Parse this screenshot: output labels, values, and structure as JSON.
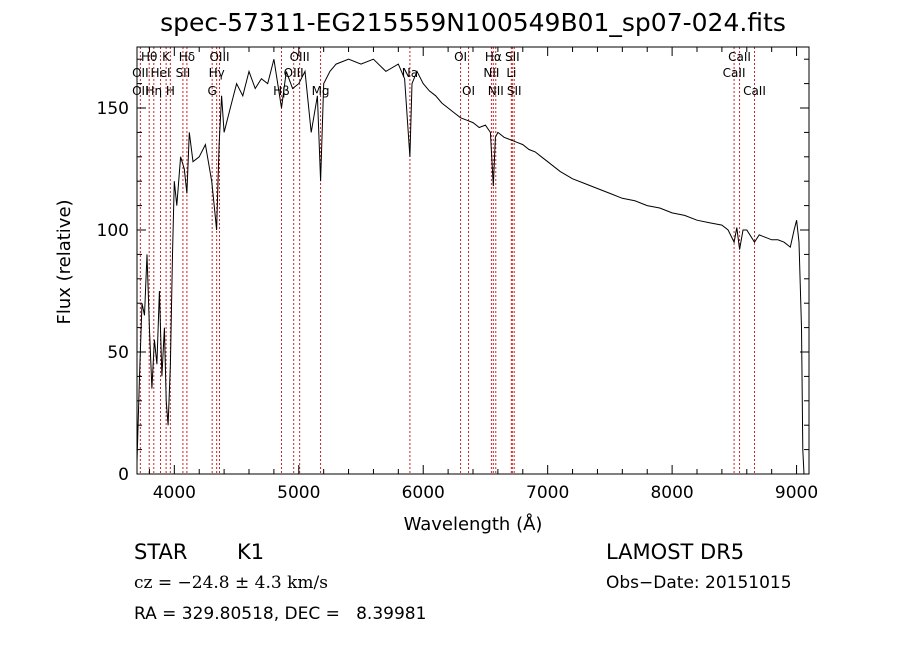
{
  "chart_data": {
    "type": "line",
    "title": "spec-57311-EG215559N100549B01_sp07-024.fits",
    "xlabel": "Wavelength (Å)",
    "ylabel": "Flux (relative)",
    "xlim": [
      3700,
      9100
    ],
    "ylim": [
      0,
      175
    ],
    "xticks": [
      4000,
      5000,
      6000,
      7000,
      8000,
      9000
    ],
    "yticks": [
      0,
      50,
      100,
      150
    ],
    "grid": false,
    "legend": "none",
    "series": [
      {
        "values_x": [
          3700,
          3720,
          3740,
          3760,
          3780,
          3800,
          3820,
          3840,
          3860,
          3880,
          3900,
          3920,
          3935,
          3950,
          3968,
          3985,
          4000,
          4020,
          4050,
          4080,
          4101,
          4120,
          4150,
          4200,
          4250,
          4300,
          4320,
          4340,
          4360,
          4380,
          4400,
          4450,
          4500,
          4550,
          4600,
          4650,
          4700,
          4750,
          4800,
          4861,
          4900,
          4950,
          5000,
          5050,
          5100,
          5150,
          5175,
          5200,
          5250,
          5300,
          5400,
          5500,
          5600,
          5700,
          5800,
          5850,
          5893,
          5910,
          5950,
          6000,
          6050,
          6100,
          6150,
          6200,
          6250,
          6300,
          6350,
          6400,
          6450,
          6500,
          6540,
          6563,
          6580,
          6600,
          6650,
          6700,
          6750,
          6800,
          6850,
          6900,
          6950,
          7000,
          7100,
          7200,
          7300,
          7400,
          7500,
          7600,
          7700,
          7800,
          7900,
          8000,
          8100,
          8200,
          8300,
          8400,
          8450,
          8498,
          8520,
          8542,
          8570,
          8600,
          8662,
          8700,
          8750,
          8800,
          8850,
          8900,
          8950,
          8980,
          9000,
          9020,
          9040,
          9050,
          9060
        ],
        "values_y": [
          5,
          40,
          70,
          65,
          90,
          60,
          35,
          55,
          45,
          75,
          40,
          60,
          30,
          20,
          45,
          90,
          120,
          110,
          130,
          125,
          115,
          140,
          128,
          130,
          135,
          120,
          110,
          100,
          135,
          155,
          140,
          150,
          160,
          155,
          165,
          158,
          162,
          160,
          170,
          150,
          165,
          158,
          160,
          165,
          140,
          155,
          120,
          160,
          165,
          168,
          170,
          168,
          170,
          165,
          168,
          162,
          130,
          160,
          165,
          160,
          157,
          155,
          152,
          150,
          148,
          146,
          145,
          144,
          142,
          143,
          140,
          118,
          138,
          140,
          138,
          137,
          136,
          135,
          133,
          132,
          130,
          128,
          124,
          121,
          119,
          117,
          115,
          113,
          112,
          110,
          109,
          107,
          106,
          104,
          103,
          102,
          100,
          95,
          101,
          92,
          100,
          100,
          95,
          98,
          97,
          96,
          96,
          95,
          93,
          100,
          104,
          95,
          60,
          10,
          0
        ]
      }
    ],
    "line_labels": [
      {
        "text": "Hθ",
        "x": 3798,
        "row": 0
      },
      {
        "text": "K",
        "x": 3934,
        "row": 0
      },
      {
        "text": "Hδ",
        "x": 4101,
        "row": 0
      },
      {
        "text": "OIII",
        "x": 4363,
        "row": 0
      },
      {
        "text": "OIII",
        "x": 5007,
        "row": 0
      },
      {
        "text": "OI",
        "x": 6300,
        "row": 0
      },
      {
        "text": "Hα",
        "x": 6563,
        "row": 0
      },
      {
        "text": "SII",
        "x": 6716,
        "row": 0
      },
      {
        "text": "CaII",
        "x": 8542,
        "row": 0
      },
      {
        "text": "OII",
        "x": 3727,
        "row": 1
      },
      {
        "text": "HeI",
        "x": 3889,
        "row": 1
      },
      {
        "text": "SII",
        "x": 4069,
        "row": 1
      },
      {
        "text": "Hγ",
        "x": 4340,
        "row": 1
      },
      {
        "text": "OIII",
        "x": 4959,
        "row": 1
      },
      {
        "text": "Na",
        "x": 5893,
        "row": 1
      },
      {
        "text": "NII",
        "x": 6548,
        "row": 1
      },
      {
        "text": "Li",
        "x": 6708,
        "row": 1
      },
      {
        "text": "CaII",
        "x": 8498,
        "row": 1
      },
      {
        "text": "OII",
        "x": 3727,
        "row": 2
      },
      {
        "text": "Hη",
        "x": 3835,
        "row": 2
      },
      {
        "text": "H",
        "x": 3968,
        "row": 2
      },
      {
        "text": "G",
        "x": 4304,
        "row": 2
      },
      {
        "text": "Hβ",
        "x": 4861,
        "row": 2
      },
      {
        "text": "Mg",
        "x": 5175,
        "row": 2
      },
      {
        "text": "OI",
        "x": 6364,
        "row": 2
      },
      {
        "text": "NII",
        "x": 6583,
        "row": 2
      },
      {
        "text": "SII",
        "x": 6731,
        "row": 2
      },
      {
        "text": "CaII",
        "x": 8662,
        "row": 2
      }
    ],
    "line_markers": [
      3727,
      3798,
      3835,
      3889,
      3934,
      3968,
      4069,
      4101,
      4304,
      4340,
      4363,
      4861,
      4959,
      5007,
      5175,
      5893,
      6300,
      6364,
      6548,
      6563,
      6583,
      6708,
      6716,
      6731,
      8498,
      8542,
      8662
    ],
    "colors": {
      "spectrum": "#000000",
      "markers": "#cc2222",
      "background": "#ffffff"
    }
  },
  "info": {
    "class": "STAR",
    "subclass": "K1",
    "survey": "LAMOST DR5",
    "cz": "cz = −24.8 ± 4.3 km/s",
    "obs_date": "Obs−Date: 20151015",
    "coords": "RA = 329.80518, DEC =   8.39981"
  }
}
